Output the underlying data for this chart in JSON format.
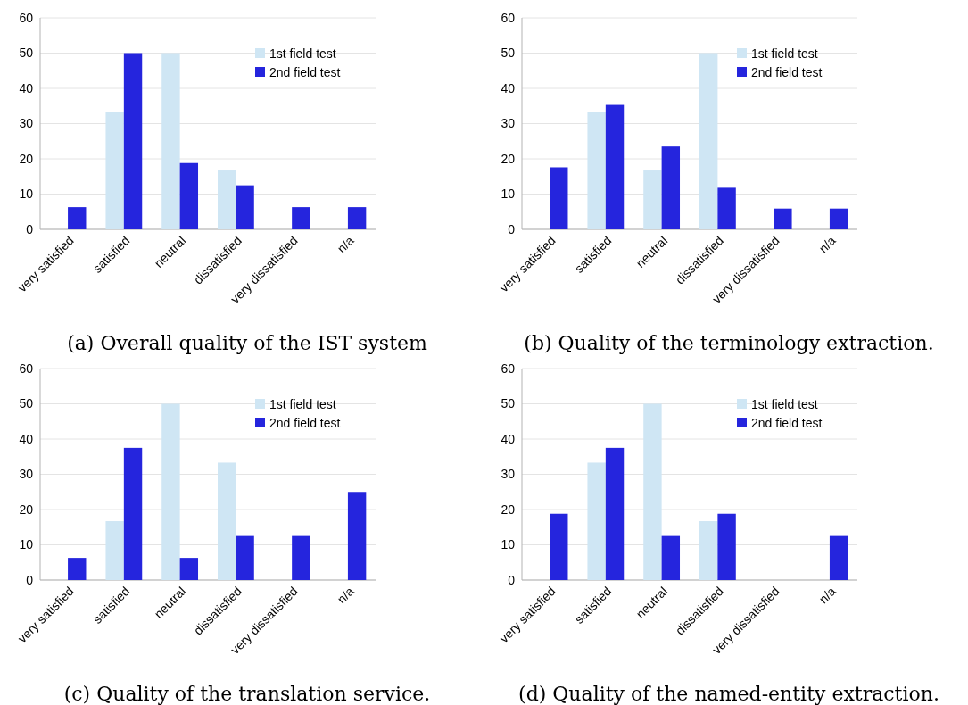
{
  "chart_data": [
    {
      "type": "bar",
      "title": "(a) Overall quality of the IST system",
      "categories": [
        "very satisfied",
        "satisfied",
        "neutral",
        "dissatisfied",
        "very dissatisfied",
        "n/a"
      ],
      "series": [
        {
          "name": "1st field test",
          "color": "#cfe6f4",
          "values": [
            0,
            33.3,
            50,
            16.7,
            0,
            0
          ]
        },
        {
          "name": "2nd field test",
          "color": "#2525dd",
          "values": [
            6.3,
            50,
            18.8,
            12.5,
            6.3,
            6.3
          ]
        }
      ],
      "ylim": [
        0,
        60
      ],
      "yticks": [
        0,
        10,
        20,
        30,
        40,
        50,
        60
      ],
      "grid": "y",
      "legend": "top right"
    },
    {
      "type": "bar",
      "title": "(b) Quality of the terminology extraction.",
      "categories": [
        "very satisfied",
        "satisfied",
        "neutral",
        "dissatisfied",
        "very dissatisfied",
        "n/a"
      ],
      "series": [
        {
          "name": "1st field test",
          "color": "#cfe6f4",
          "values": [
            0,
            33.3,
            16.7,
            50,
            0,
            0
          ]
        },
        {
          "name": "2nd field test",
          "color": "#2525dd",
          "values": [
            17.6,
            35.3,
            23.5,
            11.8,
            5.9,
            5.9
          ]
        }
      ],
      "ylim": [
        0,
        60
      ],
      "yticks": [
        0,
        10,
        20,
        30,
        40,
        50,
        60
      ],
      "grid": "y",
      "legend": "top right"
    },
    {
      "type": "bar",
      "title": "(c) Quality of the translation service.",
      "categories": [
        "very satisfied",
        "satisfied",
        "neutral",
        "dissatisfied",
        "very dissatisfied",
        "n/a"
      ],
      "series": [
        {
          "name": "1st field test",
          "color": "#cfe6f4",
          "values": [
            0,
            16.7,
            50,
            33.3,
            0,
            0
          ]
        },
        {
          "name": "2nd field test",
          "color": "#2525dd",
          "values": [
            6.3,
            37.5,
            6.3,
            12.5,
            12.5,
            25
          ]
        }
      ],
      "ylim": [
        0,
        60
      ],
      "yticks": [
        0,
        10,
        20,
        30,
        40,
        50,
        60
      ],
      "grid": "y",
      "legend": "top right"
    },
    {
      "type": "bar",
      "title": "(d) Quality of the named-entity extraction.",
      "categories": [
        "very satisfied",
        "satisfied",
        "neutral",
        "dissatisfied",
        "very dissatisfied",
        "n/a"
      ],
      "series": [
        {
          "name": "1st field test",
          "color": "#cfe6f4",
          "values": [
            0,
            33.3,
            50,
            16.7,
            0,
            0
          ]
        },
        {
          "name": "2nd field test",
          "color": "#2525dd",
          "values": [
            18.8,
            37.5,
            12.5,
            18.8,
            0,
            12.5
          ]
        }
      ],
      "ylim": [
        0,
        60
      ],
      "yticks": [
        0,
        10,
        20,
        30,
        40,
        50,
        60
      ],
      "grid": "y",
      "legend": "top right"
    }
  ]
}
